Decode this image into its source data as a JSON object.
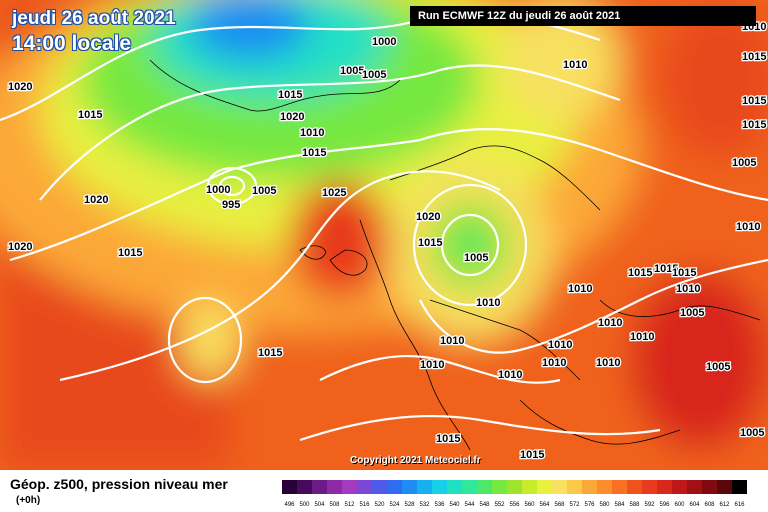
{
  "header": {
    "date": "jeudi 26 août 2021",
    "time": "14:00 locale",
    "run": "Run ECMWF 12Z du jeudi 26 août 2021"
  },
  "footer": {
    "copyright": "Copyright 2021 Meteociel.fr",
    "legend_title": "Géop. z500, pression niveau mer",
    "legend_sub": "(+0h)"
  },
  "legend_scale": {
    "values": [
      "496",
      "500",
      "504",
      "508",
      "512",
      "516",
      "520",
      "524",
      "528",
      "532",
      "536",
      "540",
      "544",
      "548",
      "552",
      "556",
      "560",
      "564",
      "568",
      "572",
      "576",
      "580",
      "584",
      "588",
      "592",
      "596",
      "600",
      "604",
      "608",
      "612",
      "616"
    ],
    "colors": [
      "#2a0038",
      "#4a0a5c",
      "#6c1a86",
      "#8e2aa8",
      "#a23bbf",
      "#7a48d8",
      "#4f5ae8",
      "#2f6df0",
      "#1e8cf2",
      "#14b0f0",
      "#16d0e8",
      "#20e0c4",
      "#30e89a",
      "#4ce868",
      "#76e840",
      "#9ee42c",
      "#c8ec2a",
      "#e8f040",
      "#f8e060",
      "#fcc848",
      "#fca838",
      "#fc8c2c",
      "#f87024",
      "#f0521e",
      "#e83a1c",
      "#d8281c",
      "#c0181a",
      "#a01014",
      "#800a10",
      "#5c060a",
      "#000000"
    ]
  },
  "isobar_labels": [
    "1000",
    "1005",
    "1010",
    "1015",
    "1020",
    "1025",
    "995"
  ]
}
